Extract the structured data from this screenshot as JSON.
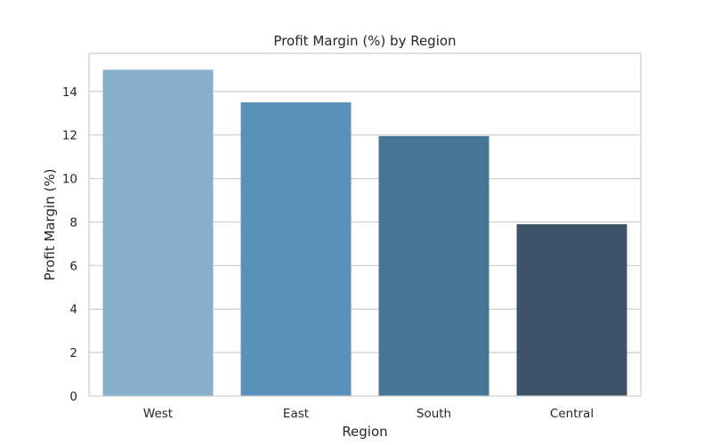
{
  "chart_data": {
    "type": "bar",
    "title": "Profit Margin (%) by Region",
    "xlabel": "Region",
    "ylabel": "Profit Margin (%)",
    "categories": [
      "West",
      "East",
      "South",
      "Central"
    ],
    "values": [
      15.0,
      13.5,
      11.95,
      7.9
    ],
    "colors": [
      "#88afcb",
      "#5b92bb",
      "#467697",
      "#3c5369"
    ],
    "ylim": [
      0,
      15.75
    ],
    "yticks": [
      "0",
      "2",
      "4",
      "6",
      "8",
      "10",
      "12",
      "14"
    ],
    "grid": "horizontal",
    "grid_color": "#cccccc",
    "frame_color": "#cccccc"
  }
}
